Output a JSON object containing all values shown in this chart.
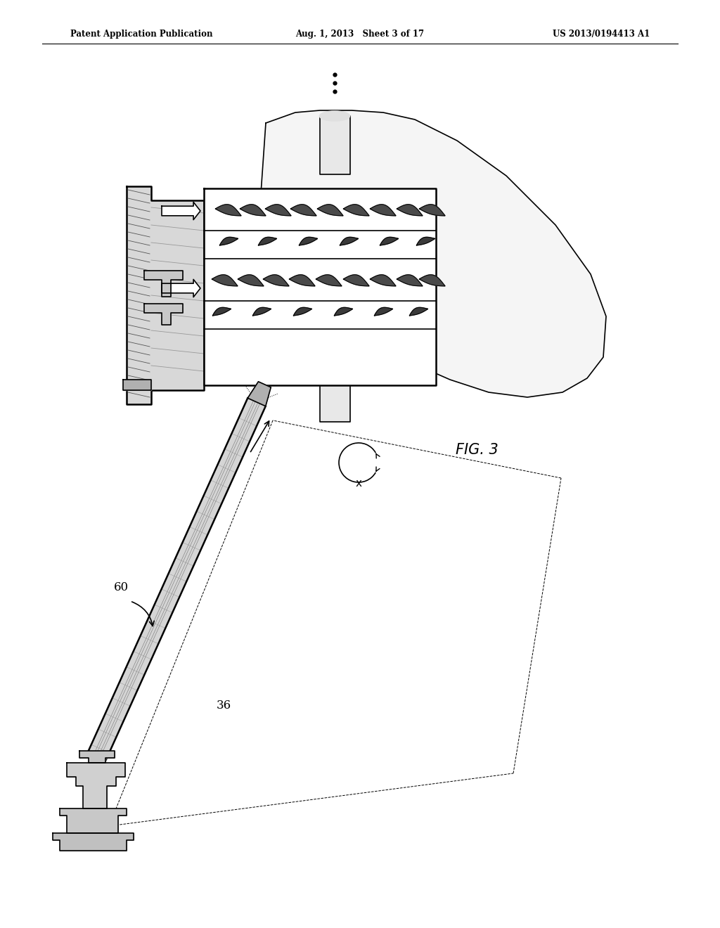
{
  "background_color": "#ffffff",
  "header_left": "Patent Application Publication",
  "header_center": "Aug. 1, 2013   Sheet 3 of 17",
  "header_right": "US 2013/0194413 A1",
  "fig_label": "FIG. 3",
  "label_60": "60",
  "label_36": "36",
  "line_color": "#000000",
  "lw_thin": 0.7,
  "lw_med": 1.2,
  "lw_thick": 1.8
}
